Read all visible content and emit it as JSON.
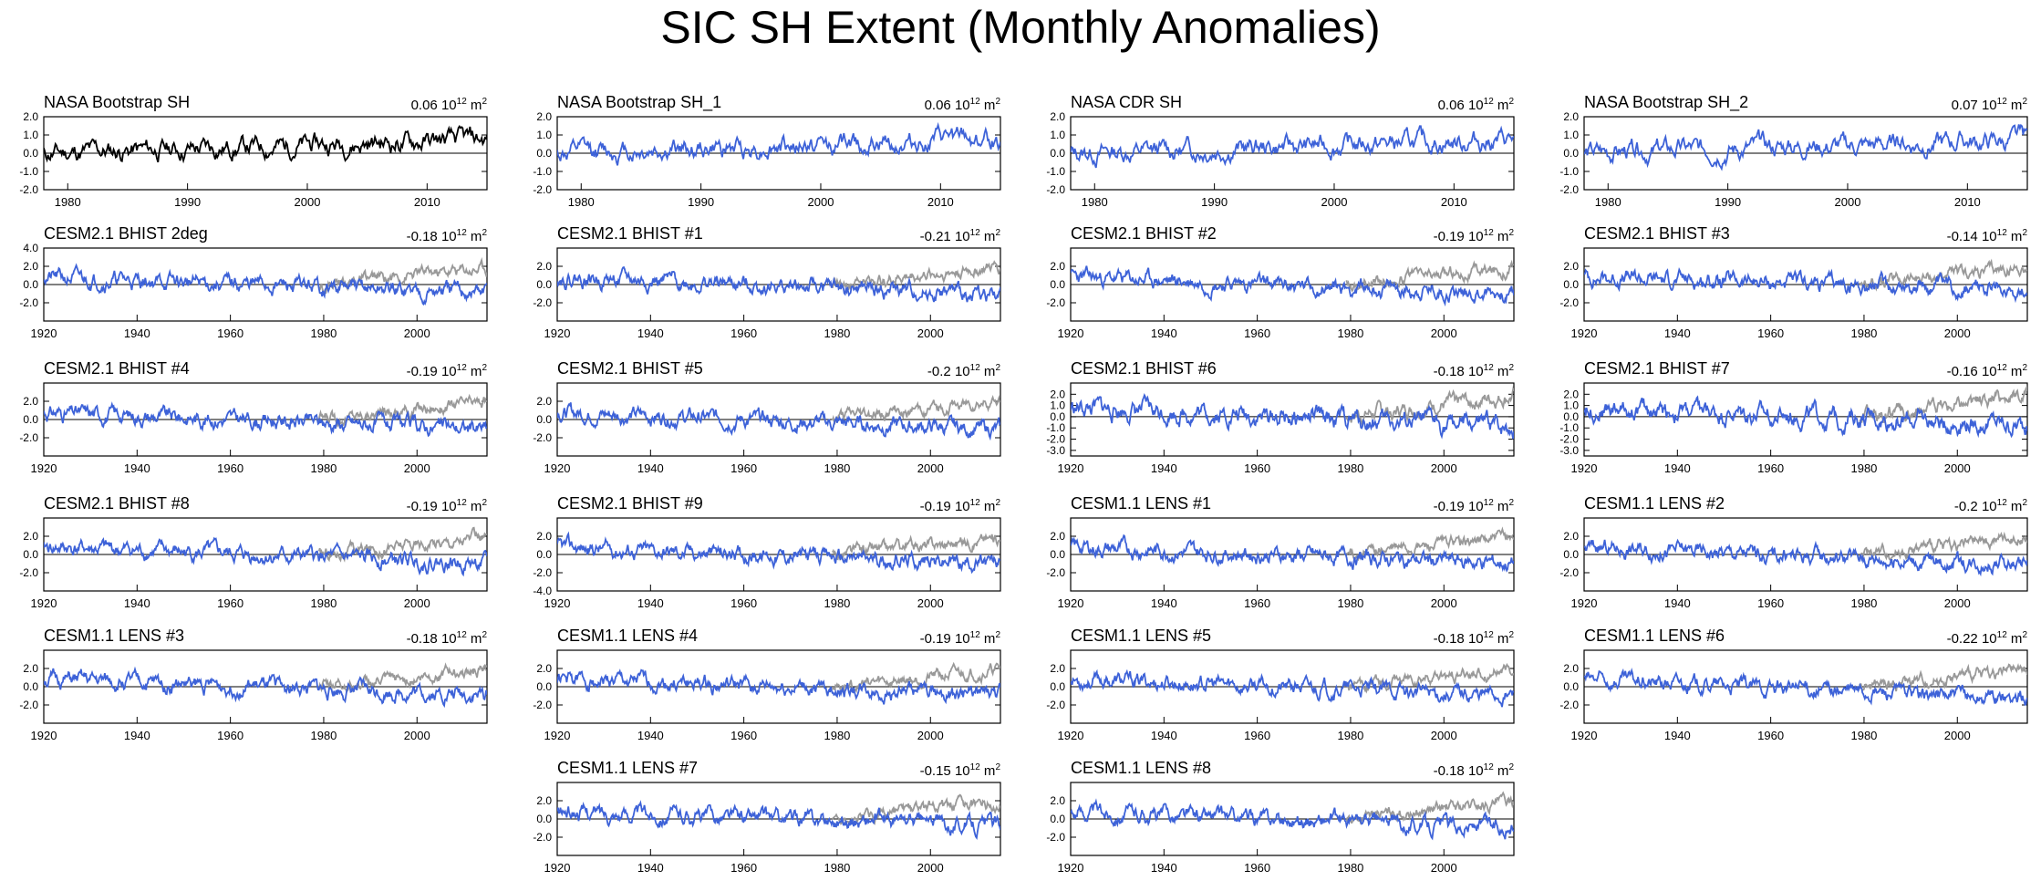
{
  "title": "SIC SH Extent (Monthly Anomalies)",
  "colors": {
    "observed": "#000000",
    "model": "#3d62d8",
    "obs_overlay": "#999999",
    "axis": "#000000"
  },
  "unit_text": "10",
  "unit_exp": "12",
  "unit_tail": "m",
  "unit_tail_exp": "2",
  "chart_data": [
    {
      "type": "line",
      "title": "NASA Bootstrap SH",
      "value": "0.06",
      "xlim": [
        1978,
        2015
      ],
      "ylim": [
        -2.0,
        2.0
      ],
      "xticks": [
        "1980",
        "1990",
        "2000",
        "2010"
      ],
      "yticks": [
        "2.0",
        "1.0",
        "0.0",
        "-1.0",
        "-2.0"
      ],
      "seed": 11,
      "trend": 0.02,
      "amp": 0.45,
      "overlay": false,
      "line_color": "#000000"
    },
    {
      "type": "line",
      "title": "NASA Bootstrap SH_1",
      "value": "0.06",
      "xlim": [
        1978,
        2015
      ],
      "ylim": [
        -2.0,
        2.0
      ],
      "xticks": [
        "1980",
        "1990",
        "2000",
        "2010"
      ],
      "yticks": [
        "2.0",
        "1.0",
        "0.0",
        "-1.0",
        "-2.0"
      ],
      "seed": 12,
      "trend": 0.02,
      "amp": 0.45,
      "overlay": false,
      "line_color": "#3d62d8"
    },
    {
      "type": "line",
      "title": "NASA CDR SH",
      "value": "0.06",
      "xlim": [
        1978,
        2015
      ],
      "ylim": [
        -2.0,
        2.0
      ],
      "xticks": [
        "1980",
        "1990",
        "2000",
        "2010"
      ],
      "yticks": [
        "2.0",
        "1.0",
        "0.0",
        "-1.0",
        "-2.0"
      ],
      "seed": 13,
      "trend": 0.02,
      "amp": 0.45,
      "overlay": false,
      "line_color": "#3d62d8"
    },
    {
      "type": "line",
      "title": "NASA Bootstrap SH_2",
      "value": "0.07",
      "xlim": [
        1978,
        2015
      ],
      "ylim": [
        -2.0,
        2.0
      ],
      "xticks": [
        "1980",
        "1990",
        "2000",
        "2010"
      ],
      "yticks": [
        "2.0",
        "1.0",
        "0.0",
        "-1.0",
        "-2.0"
      ],
      "seed": 14,
      "trend": 0.02,
      "amp": 0.45,
      "overlay": false,
      "line_color": "#3d62d8"
    },
    {
      "type": "line",
      "title": "CESM2.1 BHIST 2deg",
      "value": "-0.18",
      "xlim": [
        1920,
        2015
      ],
      "ylim": [
        -4.0,
        4.0
      ],
      "xticks": [
        "1920",
        "1940",
        "1960",
        "1980",
        "2000"
      ],
      "yticks": [
        "4.0",
        "2.0",
        "0.0",
        "-2.0"
      ],
      "seed": 21,
      "trend": -0.018,
      "amp": 0.7,
      "overlay": true,
      "line_color": "#3d62d8"
    },
    {
      "type": "line",
      "title": "CESM2.1 BHIST #1",
      "value": "-0.21",
      "xlim": [
        1920,
        2015
      ],
      "ylim": [
        -4.0,
        4.0
      ],
      "xticks": [
        "1920",
        "1940",
        "1960",
        "1980",
        "2000"
      ],
      "yticks": [
        "2.0",
        "0.0",
        "-2.0"
      ],
      "seed": 22,
      "trend": -0.021,
      "amp": 0.7,
      "overlay": true,
      "line_color": "#3d62d8"
    },
    {
      "type": "line",
      "title": "CESM2.1 BHIST #2",
      "value": "-0.19",
      "xlim": [
        1920,
        2015
      ],
      "ylim": [
        -4.0,
        4.0
      ],
      "xticks": [
        "1920",
        "1940",
        "1960",
        "1980",
        "2000"
      ],
      "yticks": [
        "2.0",
        "0.0",
        "-2.0"
      ],
      "seed": 23,
      "trend": -0.019,
      "amp": 0.7,
      "overlay": true,
      "line_color": "#3d62d8"
    },
    {
      "type": "line",
      "title": "CESM2.1 BHIST #3",
      "value": "-0.14",
      "xlim": [
        1920,
        2015
      ],
      "ylim": [
        -4.0,
        4.0
      ],
      "xticks": [
        "1920",
        "1940",
        "1960",
        "1980",
        "2000"
      ],
      "yticks": [
        "2.0",
        "0.0",
        "-2.0"
      ],
      "seed": 24,
      "trend": -0.014,
      "amp": 0.7,
      "overlay": true,
      "line_color": "#3d62d8"
    },
    {
      "type": "line",
      "title": "CESM2.1 BHIST #4",
      "value": "-0.19",
      "xlim": [
        1920,
        2015
      ],
      "ylim": [
        -4.0,
        4.0
      ],
      "xticks": [
        "1920",
        "1940",
        "1960",
        "1980",
        "2000"
      ],
      "yticks": [
        "2.0",
        "0.0",
        "-2.0"
      ],
      "seed": 31,
      "trend": -0.019,
      "amp": 0.7,
      "overlay": true,
      "line_color": "#3d62d8"
    },
    {
      "type": "line",
      "title": "CESM2.1 BHIST #5",
      "value": "-0.2",
      "xlim": [
        1920,
        2015
      ],
      "ylim": [
        -4.0,
        4.0
      ],
      "xticks": [
        "1920",
        "1940",
        "1960",
        "1980",
        "2000"
      ],
      "yticks": [
        "2.0",
        "0.0",
        "-2.0"
      ],
      "seed": 32,
      "trend": -0.02,
      "amp": 0.7,
      "overlay": true,
      "line_color": "#3d62d8"
    },
    {
      "type": "line",
      "title": "CESM2.1 BHIST #6",
      "value": "-0.18",
      "xlim": [
        1920,
        2015
      ],
      "ylim": [
        -3.5,
        3.0
      ],
      "xticks": [
        "1920",
        "1940",
        "1960",
        "1980",
        "2000"
      ],
      "yticks": [
        "2.0",
        "1.0",
        "0.0",
        "-1.0",
        "-2.0",
        "-3.0"
      ],
      "seed": 33,
      "trend": -0.018,
      "amp": 0.7,
      "overlay": true,
      "line_color": "#3d62d8"
    },
    {
      "type": "line",
      "title": "CESM2.1 BHIST #7",
      "value": "-0.16",
      "xlim": [
        1920,
        2015
      ],
      "ylim": [
        -3.5,
        3.0
      ],
      "xticks": [
        "1920",
        "1940",
        "1960",
        "1980",
        "2000"
      ],
      "yticks": [
        "2.0",
        "1.0",
        "0.0",
        "-1.0",
        "-2.0",
        "-3.0"
      ],
      "seed": 34,
      "trend": -0.016,
      "amp": 0.7,
      "overlay": true,
      "line_color": "#3d62d8"
    },
    {
      "type": "line",
      "title": "CESM2.1 BHIST #8",
      "value": "-0.19",
      "xlim": [
        1920,
        2015
      ],
      "ylim": [
        -4.0,
        4.0
      ],
      "xticks": [
        "1920",
        "1940",
        "1960",
        "1980",
        "2000"
      ],
      "yticks": [
        "2.0",
        "0.0",
        "-2.0"
      ],
      "seed": 41,
      "trend": -0.019,
      "amp": 0.7,
      "overlay": true,
      "line_color": "#3d62d8"
    },
    {
      "type": "line",
      "title": "CESM2.1 BHIST #9",
      "value": "-0.19",
      "xlim": [
        1920,
        2015
      ],
      "ylim": [
        -4.0,
        4.0
      ],
      "xticks": [
        "1920",
        "1940",
        "1960",
        "1980",
        "2000"
      ],
      "yticks": [
        "2.0",
        "0.0",
        "-2.0",
        "-4.0"
      ],
      "seed": 42,
      "trend": -0.019,
      "amp": 0.7,
      "overlay": true,
      "line_color": "#3d62d8"
    },
    {
      "type": "line",
      "title": "CESM1.1 LENS #1",
      "value": "-0.19",
      "xlim": [
        1920,
        2015
      ],
      "ylim": [
        -4.0,
        4.0
      ],
      "xticks": [
        "1920",
        "1940",
        "1960",
        "1980",
        "2000"
      ],
      "yticks": [
        "2.0",
        "0.0",
        "-2.0"
      ],
      "seed": 43,
      "trend": -0.019,
      "amp": 0.7,
      "overlay": true,
      "line_color": "#3d62d8"
    },
    {
      "type": "line",
      "title": "CESM1.1 LENS #2",
      "value": "-0.2",
      "xlim": [
        1920,
        2015
      ],
      "ylim": [
        -4.0,
        4.0
      ],
      "xticks": [
        "1920",
        "1940",
        "1960",
        "1980",
        "2000"
      ],
      "yticks": [
        "2.0",
        "0.0",
        "-2.0"
      ],
      "seed": 44,
      "trend": -0.02,
      "amp": 0.7,
      "overlay": true,
      "line_color": "#3d62d8"
    },
    {
      "type": "line",
      "title": "CESM1.1 LENS #3",
      "value": "-0.18",
      "xlim": [
        1920,
        2015
      ],
      "ylim": [
        -4.0,
        4.0
      ],
      "xticks": [
        "1920",
        "1940",
        "1960",
        "1980",
        "2000"
      ],
      "yticks": [
        "2.0",
        "0.0",
        "-2.0"
      ],
      "seed": 51,
      "trend": -0.018,
      "amp": 0.7,
      "overlay": true,
      "line_color": "#3d62d8"
    },
    {
      "type": "line",
      "title": "CESM1.1 LENS #4",
      "value": "-0.19",
      "xlim": [
        1920,
        2015
      ],
      "ylim": [
        -4.0,
        4.0
      ],
      "xticks": [
        "1920",
        "1940",
        "1960",
        "1980",
        "2000"
      ],
      "yticks": [
        "2.0",
        "0.0",
        "-2.0"
      ],
      "seed": 52,
      "trend": -0.019,
      "amp": 0.7,
      "overlay": true,
      "line_color": "#3d62d8"
    },
    {
      "type": "line",
      "title": "CESM1.1 LENS #5",
      "value": "-0.18",
      "xlim": [
        1920,
        2015
      ],
      "ylim": [
        -4.0,
        4.0
      ],
      "xticks": [
        "1920",
        "1940",
        "1960",
        "1980",
        "2000"
      ],
      "yticks": [
        "2.0",
        "0.0",
        "-2.0"
      ],
      "seed": 53,
      "trend": -0.018,
      "amp": 0.7,
      "overlay": true,
      "line_color": "#3d62d8"
    },
    {
      "type": "line",
      "title": "CESM1.1 LENS #6",
      "value": "-0.22",
      "xlim": [
        1920,
        2015
      ],
      "ylim": [
        -4.0,
        4.0
      ],
      "xticks": [
        "1920",
        "1940",
        "1960",
        "1980",
        "2000"
      ],
      "yticks": [
        "2.0",
        "0.0",
        "-2.0"
      ],
      "seed": 54,
      "trend": -0.022,
      "amp": 0.7,
      "overlay": true,
      "line_color": "#3d62d8"
    },
    {
      "type": "line",
      "title": "CESM1.1 LENS #7",
      "value": "-0.15",
      "xlim": [
        1920,
        2015
      ],
      "ylim": [
        -4.0,
        4.0
      ],
      "xticks": [
        "1920",
        "1940",
        "1960",
        "1980",
        "2000"
      ],
      "yticks": [
        "2.0",
        "0.0",
        "-2.0"
      ],
      "seed": 62,
      "trend": -0.015,
      "amp": 0.7,
      "overlay": true,
      "line_color": "#3d62d8"
    },
    {
      "type": "line",
      "title": "CESM1.1 LENS #8",
      "value": "-0.18",
      "xlim": [
        1920,
        2015
      ],
      "ylim": [
        -4.0,
        4.0
      ],
      "xticks": [
        "1920",
        "1940",
        "1960",
        "1980",
        "2000"
      ],
      "yticks": [
        "2.0",
        "0.0",
        "-2.0"
      ],
      "seed": 63,
      "trend": -0.018,
      "amp": 0.7,
      "overlay": true,
      "line_color": "#3d62d8"
    }
  ]
}
